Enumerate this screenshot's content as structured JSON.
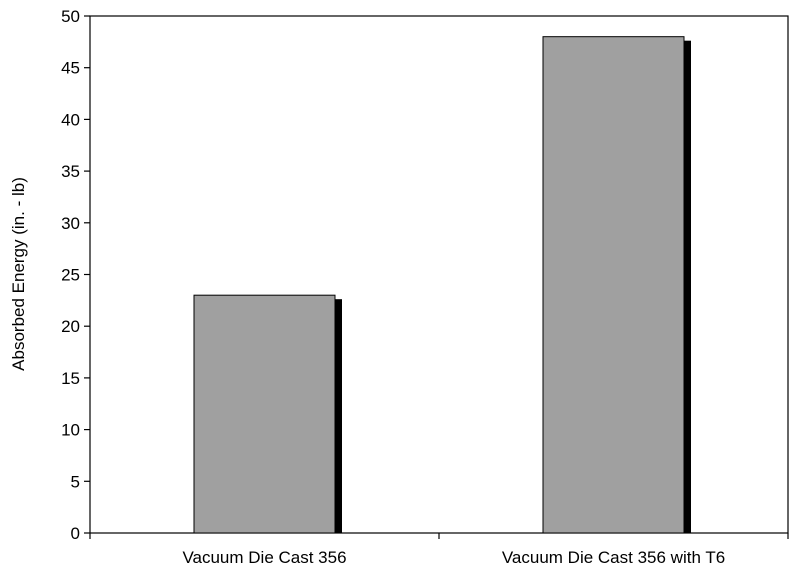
{
  "chart_data": {
    "type": "bar",
    "title": "",
    "xlabel": "",
    "ylabel": "Absorbed Energy (in. - lb)",
    "categories": [
      "Vacuum Die Cast 356",
      "Vacuum Die Cast 356 with T6"
    ],
    "values": [
      23,
      48
    ],
    "ylim": [
      0,
      50
    ],
    "yticks": [
      0,
      5,
      10,
      15,
      20,
      25,
      30,
      35,
      40,
      45,
      50
    ],
    "ytick_labels": [
      "0",
      "5",
      "10",
      "15",
      "20",
      "25",
      "30",
      "35",
      "40",
      "45",
      "50"
    ],
    "grid": false,
    "legend": "none",
    "colors": {
      "bar_fill": "#a0a0a0",
      "bar_shadow": "#000000",
      "axis": "#000000"
    }
  }
}
